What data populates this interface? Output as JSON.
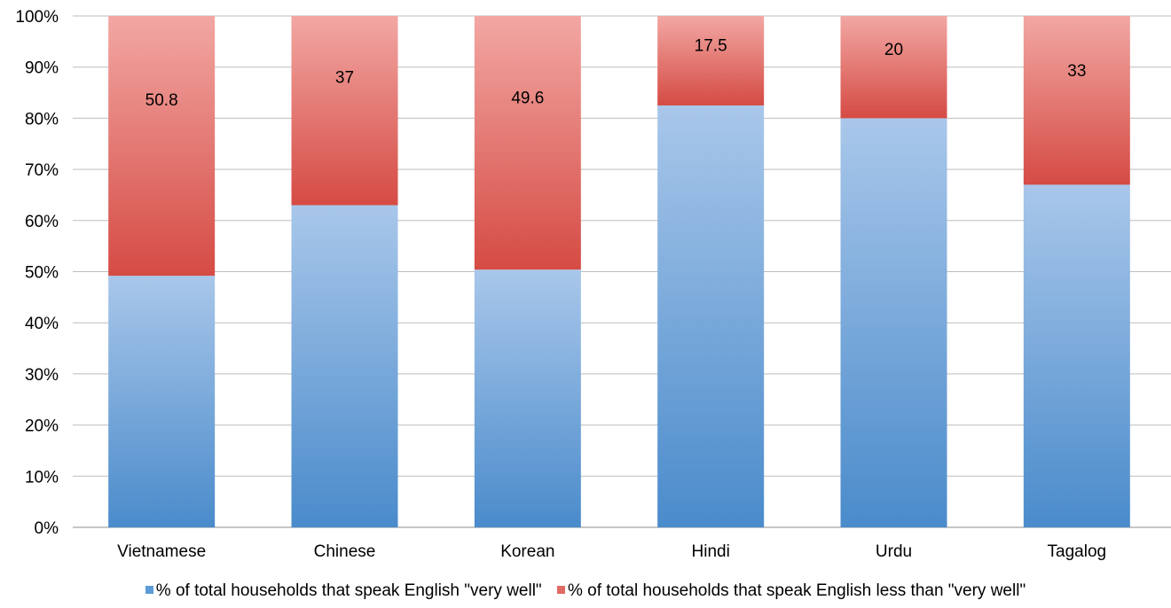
{
  "chart_data": {
    "type": "bar",
    "stacked": true,
    "percent_stacked": true,
    "title": "",
    "xlabel": "",
    "ylabel": "",
    "categories": [
      "Vietnamese",
      "Chinese",
      "Korean",
      "Hindi",
      "Urdu",
      "Tagalog"
    ],
    "series": [
      {
        "name": "% of total households that speak English \"very well\"",
        "values": [
          49.2,
          63,
          50.4,
          82.5,
          80,
          67
        ],
        "color": "#4f8fd0"
      },
      {
        "name": "% of total households that speak English less than \"very well\"",
        "values": [
          50.8,
          37,
          49.6,
          17.5,
          20,
          33
        ],
        "data_labels": [
          "50.8",
          "37",
          "49.6",
          "17.5",
          "20",
          "33"
        ],
        "color": "#d9534c"
      }
    ],
    "y_ticks": [
      "0%",
      "10%",
      "20%",
      "30%",
      "40%",
      "50%",
      "60%",
      "70%",
      "80%",
      "90%",
      "100%"
    ],
    "ylim": [
      0,
      100
    ],
    "grid": true,
    "legend_position": "bottom"
  }
}
